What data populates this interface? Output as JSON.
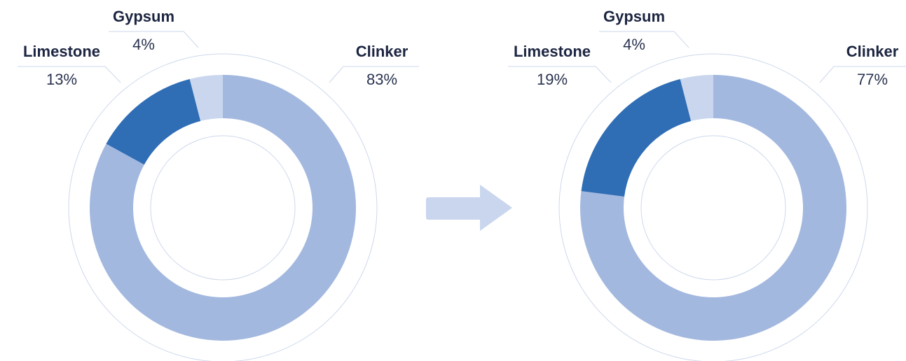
{
  "chart_data": [
    {
      "type": "donut",
      "categories": [
        "Clinker",
        "Limestone",
        "Gypsum"
      ],
      "values": [
        83,
        13,
        4
      ],
      "value_labels": [
        "83%",
        "13%",
        "4%"
      ],
      "colors": [
        "#a3b8df",
        "#2f6db5",
        "#c9d6ee"
      ]
    },
    {
      "type": "donut",
      "categories": [
        "Clinker",
        "Limestone",
        "Gypsum"
      ],
      "values": [
        77,
        19,
        4
      ],
      "value_labels": [
        "77%",
        "19%",
        "4%"
      ],
      "colors": [
        "#a3b8df",
        "#2f6db5",
        "#c9d6ee"
      ]
    }
  ]
}
